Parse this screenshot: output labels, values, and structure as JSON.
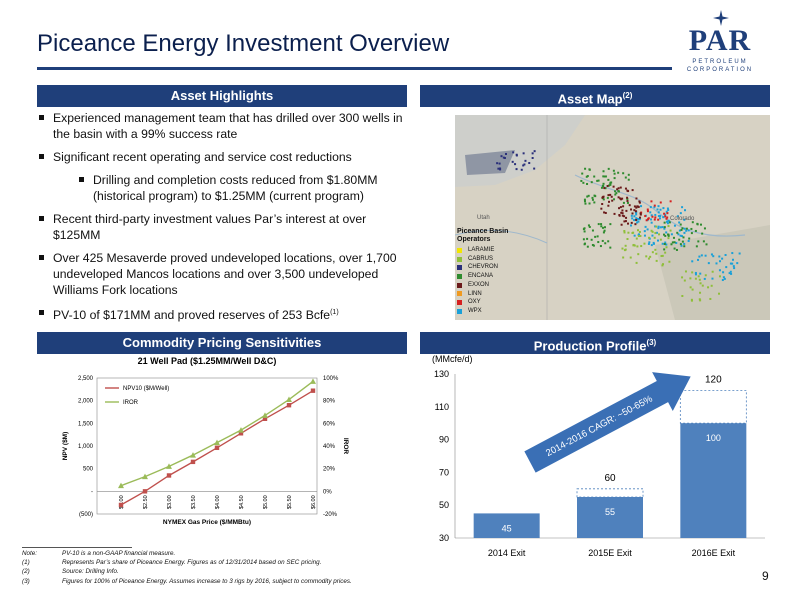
{
  "title": "Piceance Energy Investment Overview",
  "logo": {
    "name": "PAR",
    "line1": "PETROLEUM",
    "line2": "CORPORATION"
  },
  "sections": {
    "highlights": "Asset Highlights",
    "map": "Asset Map",
    "map_sup": "(2)",
    "pricing": "Commodity Pricing Sensitivities",
    "production": "Production Profile",
    "production_sup": "(3)"
  },
  "bullets": [
    "Experienced management team that has drilled over 300 wells in the basin with a 99% success rate",
    "Significant recent operating and service cost reductions",
    "Drilling and completion costs reduced from $1.80MM (historical program) to $1.25MM (current program)",
    "Recent third-party investment values Par’s interest at over $125MM",
    "Over 425 Mesaverde proved undeveloped locations, over 1,700 undeveloped Mancos locations and over 3,500 undeveloped Williams Fork locations",
    "PV-10 of $171MM and proved reserves of 253 Bcfe"
  ],
  "bullet_last_sup": "(1)",
  "map": {
    "label_utah": "Utah",
    "label_colorado": "Colorado",
    "legend_title_1": "Piceance Basin",
    "legend_title_2": "Operators",
    "legend": [
      {
        "name": "LARAMIE",
        "color": "#f2e600"
      },
      {
        "name": "CABRUS",
        "color": "#8fbf3a"
      },
      {
        "name": "CHEVRON",
        "color": "#2a2f7a"
      },
      {
        "name": "ENCANA",
        "color": "#2e8b2e"
      },
      {
        "name": "EXXON",
        "color": "#6b1a1a"
      },
      {
        "name": "LINN",
        "color": "#f09a20"
      },
      {
        "name": "OXY",
        "color": "#d62020"
      },
      {
        "name": "WPX",
        "color": "#1aa0d8"
      }
    ]
  },
  "chart_data": [
    {
      "type": "line",
      "title": "21 Well Pad ($1.25MM/Well D&C)",
      "xlabel": "NYMEX Gas Price ($/MMBtu)",
      "ylabel": "NPV ($M)",
      "y2label": "IROR",
      "x": [
        "$2.00",
        "$2.50",
        "$3.00",
        "$3.50",
        "$4.00",
        "$4.50",
        "$5.00",
        "$5.50",
        "$6.00"
      ],
      "ylim": [
        -500,
        2500
      ],
      "yticks": [
        "(500)",
        "-",
        "500",
        "1,000",
        "1,500",
        "2,000",
        "2,500"
      ],
      "y2lim": [
        -20,
        100
      ],
      "y2ticks": [
        "-20%",
        "0%",
        "20%",
        "40%",
        "60%",
        "80%",
        "100%"
      ],
      "series": [
        {
          "name": "NPV10 ($M/Well)",
          "axis": "left",
          "color": "#c0504d",
          "values": [
            -300,
            0,
            350,
            650,
            960,
            1280,
            1600,
            1900,
            2220
          ]
        },
        {
          "name": "IROR",
          "axis": "right",
          "color": "#9bbb59",
          "values": [
            5,
            13,
            22,
            32,
            43,
            54,
            67,
            81,
            97
          ]
        }
      ],
      "legend": "top-left",
      "grid": false
    },
    {
      "type": "bar",
      "unit_label": "(MMcfe/d)",
      "categories": [
        "2014 Exit",
        "2015E Exit",
        "2016E Exit"
      ],
      "values": [
        45,
        55,
        100
      ],
      "outlined_totals": [
        null,
        60,
        120
      ],
      "ylim": [
        30,
        130
      ],
      "yticks": [
        30,
        50,
        70,
        90,
        110,
        130
      ],
      "bar_color": "#4f81bd",
      "annotation": "2014-2016 CAGR: ~50-65%",
      "grid": false
    }
  ],
  "notes": [
    {
      "k": "Note:",
      "t": "PV-10 is a non-GAAP financial measure."
    },
    {
      "k": "(1)",
      "t": "Represents Par’s share of Piceance Energy. Figures as of 12/31/2014 based on SEC pricing."
    },
    {
      "k": "(2)",
      "t": "Source: Drilling Info."
    },
    {
      "k": "(3)",
      "t": "Figures for 100% of Piceance Energy. Assumes increase to 3 rigs by 2016, subject to commodity prices."
    }
  ],
  "page_number": "9"
}
